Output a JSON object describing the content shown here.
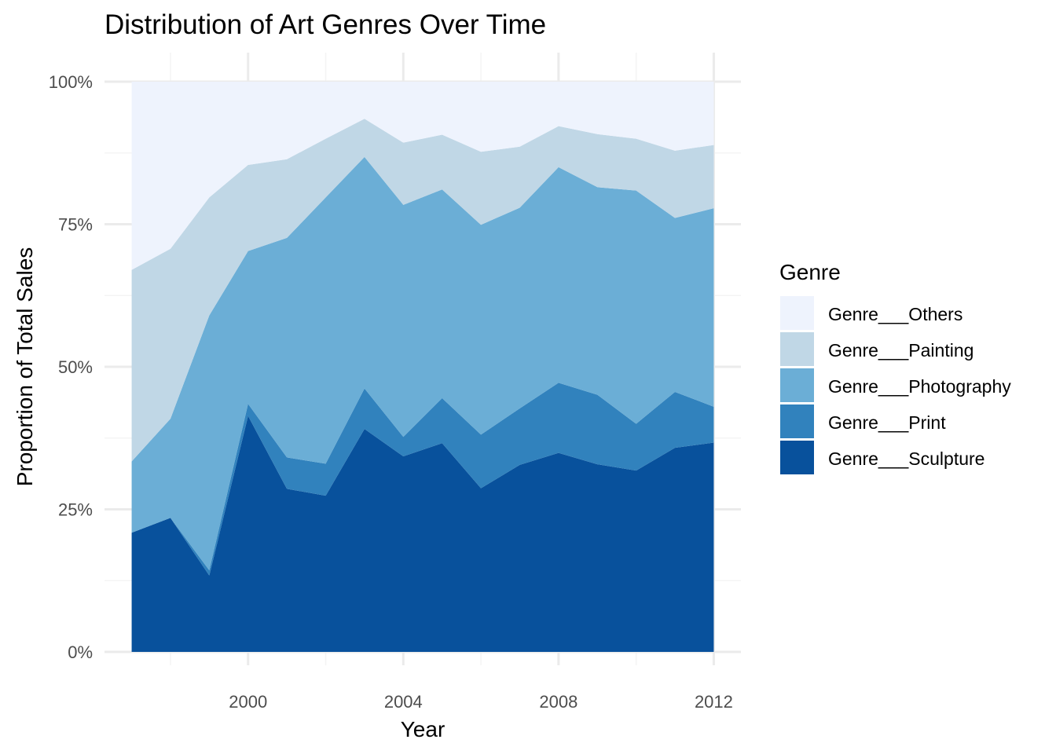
{
  "chart_data": {
    "type": "area",
    "stacked": "percent",
    "title": "Distribution of Art Genres Over Time",
    "xlabel": "Year",
    "ylabel": "Proportion of Total Sales",
    "x": [
      1997,
      1998,
      1999,
      2000,
      2001,
      2002,
      2003,
      2004,
      2005,
      2006,
      2007,
      2008,
      2009,
      2010,
      2011,
      2012
    ],
    "xlim": [
      1996.3,
      2012.7
    ],
    "ylim": [
      0,
      1
    ],
    "x_ticks": [
      2000,
      2004,
      2008,
      2012
    ],
    "x_tick_labels": [
      "2000",
      "2004",
      "2008",
      "2012"
    ],
    "y_ticks": [
      0,
      0.25,
      0.5,
      0.75,
      1
    ],
    "y_tick_labels": [
      "0%",
      "25%",
      "50%",
      "75%",
      "100%"
    ],
    "grid": true,
    "legend": {
      "title": "Genre",
      "position": "right"
    },
    "series": [
      {
        "name": "Genre___Sculpture",
        "color": "#08519c",
        "values": [
          0.209,
          0.235,
          0.134,
          0.414,
          0.286,
          0.274,
          0.391,
          0.343,
          0.366,
          0.287,
          0.328,
          0.349,
          0.329,
          0.318,
          0.358,
          0.367
        ]
      },
      {
        "name": "Genre___Print",
        "color": "#3182bd",
        "values": [
          0.0,
          0.0,
          0.009,
          0.021,
          0.055,
          0.056,
          0.071,
          0.034,
          0.079,
          0.094,
          0.099,
          0.123,
          0.122,
          0.082,
          0.098,
          0.063
        ]
      },
      {
        "name": "Genre___Photography",
        "color": "#6baed6",
        "values": [
          0.125,
          0.174,
          0.447,
          0.268,
          0.385,
          0.467,
          0.406,
          0.407,
          0.366,
          0.368,
          0.352,
          0.378,
          0.364,
          0.409,
          0.305,
          0.348
        ]
      },
      {
        "name": "Genre___Painting",
        "color": "#c0d7e6",
        "values": [
          0.336,
          0.298,
          0.207,
          0.151,
          0.138,
          0.103,
          0.067,
          0.109,
          0.096,
          0.128,
          0.107,
          0.072,
          0.093,
          0.091,
          0.118,
          0.111
        ]
      },
      {
        "name": "Genre___Others",
        "color": "#eef3fd",
        "values": [
          0.33,
          0.293,
          0.203,
          0.146,
          0.136,
          0.1,
          0.065,
          0.107,
          0.093,
          0.123,
          0.114,
          0.078,
          0.092,
          0.1,
          0.121,
          0.111
        ]
      }
    ]
  }
}
